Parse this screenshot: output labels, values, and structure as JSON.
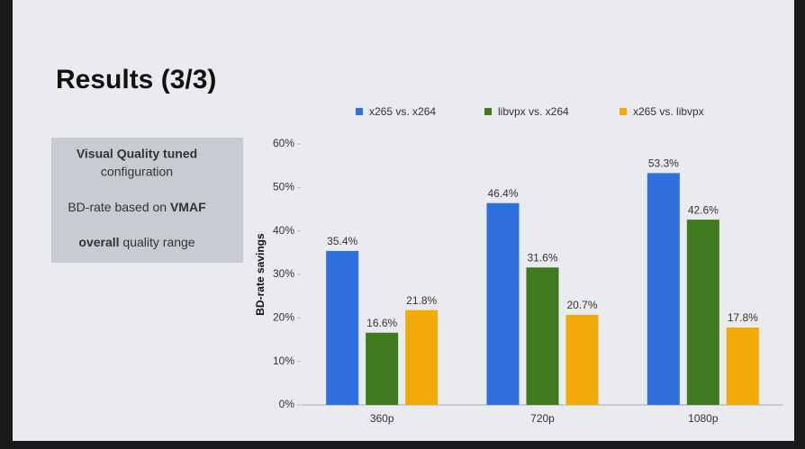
{
  "slide_title": "Results (3/3)",
  "sidebar": [
    [
      {
        "text": "Visual Quality tuned",
        "bold": true
      },
      {
        "text": "configuration",
        "bold": false
      }
    ],
    [
      {
        "text": "BD-rate based on",
        "bold": false
      },
      {
        "text": "VMAF",
        "bold": true
      }
    ],
    [
      {
        "text": "overall",
        "bold": true
      },
      {
        "text": "quality range",
        "bold": false
      }
    ]
  ],
  "chart_data": {
    "type": "bar",
    "y_label": "BD-rate savings",
    "categories": [
      "360p",
      "720p",
      "1080p"
    ],
    "series": [
      {
        "name": "x265 vs. x264",
        "color": "#2f6fde",
        "values": [
          35.4,
          46.4,
          53.3
        ],
        "value_labels": [
          "35.4%",
          "46.4%",
          "53.3%"
        ]
      },
      {
        "name": "libvpx vs. x264",
        "color": "#3f7a1e",
        "values": [
          16.6,
          31.6,
          42.6
        ],
        "value_labels": [
          "16.6%",
          "31.6%",
          "42.6%"
        ]
      },
      {
        "name": "x265 vs. libvpx",
        "color": "#f2aa0a",
        "values": [
          21.8,
          20.7,
          17.8
        ],
        "value_labels": [
          "21.8%",
          "20.7%",
          "17.8%"
        ]
      }
    ],
    "ylim": [
      0,
      60
    ],
    "yticks": [
      {
        "value": 0,
        "label": "0%"
      },
      {
        "value": 10,
        "label": "10%"
      },
      {
        "value": 20,
        "label": "20%"
      },
      {
        "value": 30,
        "label": "30%"
      },
      {
        "value": 40,
        "label": "40%"
      },
      {
        "value": 50,
        "label": "50%"
      },
      {
        "value": 60,
        "label": "60%"
      }
    ],
    "grid": false
  }
}
